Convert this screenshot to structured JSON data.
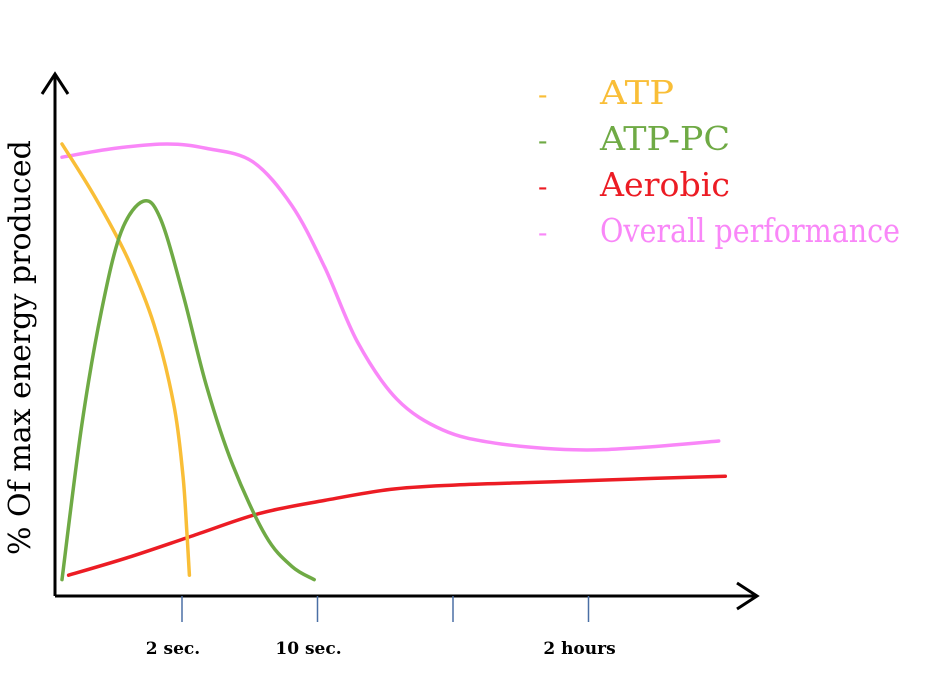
{
  "chart_data": {
    "type": "line",
    "title": "",
    "xlabel": "",
    "ylabel": "% Of max energy produced",
    "x_ticks": [
      {
        "t": 1.0,
        "label": "2 sec."
      },
      {
        "t": 2.0,
        "label": "10 sec."
      },
      {
        "t": 3.0,
        "label": ""
      },
      {
        "t": 4.0,
        "label": "2 hours"
      }
    ],
    "xlim": [
      0,
      5.2
    ],
    "ylim": [
      0,
      100
    ],
    "grid": false,
    "legend_position": "top-right",
    "series": [
      {
        "name": "ATP",
        "color": "#F9BE37",
        "points": [
          [
            0.0,
            100
          ],
          [
            0.25,
            88
          ],
          [
            0.5,
            74
          ],
          [
            0.7,
            59
          ],
          [
            0.85,
            41
          ],
          [
            0.92,
            25
          ],
          [
            0.95,
            12
          ],
          [
            0.97,
            2
          ]
        ]
      },
      {
        "name": "ATP-PC",
        "color": "#6FAA45",
        "points": [
          [
            0.0,
            1
          ],
          [
            0.15,
            36
          ],
          [
            0.3,
            62
          ],
          [
            0.45,
            80
          ],
          [
            0.62,
            87
          ],
          [
            0.75,
            83
          ],
          [
            0.92,
            66
          ],
          [
            1.1,
            45
          ],
          [
            1.3,
            27
          ],
          [
            1.55,
            11
          ],
          [
            1.75,
            4
          ],
          [
            1.92,
            1
          ]
        ]
      },
      {
        "name": "Aerobic",
        "color": "#EC1C24",
        "points": [
          [
            0.05,
            2
          ],
          [
            0.5,
            6
          ],
          [
            1.0,
            11
          ],
          [
            1.5,
            16
          ],
          [
            2.0,
            19
          ],
          [
            2.5,
            21.5
          ],
          [
            3.0,
            22.5
          ],
          [
            3.5,
            23
          ],
          [
            4.0,
            23.5
          ],
          [
            4.5,
            24
          ],
          [
            5.05,
            24.5
          ]
        ]
      },
      {
        "name": "Overall performance",
        "color": "#F987F8",
        "points": [
          [
            0.0,
            97
          ],
          [
            0.4,
            99
          ],
          [
            0.8,
            100
          ],
          [
            1.1,
            99
          ],
          [
            1.45,
            96
          ],
          [
            1.75,
            86
          ],
          [
            2.0,
            72
          ],
          [
            2.25,
            55
          ],
          [
            2.55,
            42
          ],
          [
            2.9,
            35
          ],
          [
            3.3,
            32
          ],
          [
            3.9,
            30.5
          ],
          [
            4.4,
            31
          ],
          [
            5.0,
            32.5
          ]
        ]
      }
    ]
  }
}
